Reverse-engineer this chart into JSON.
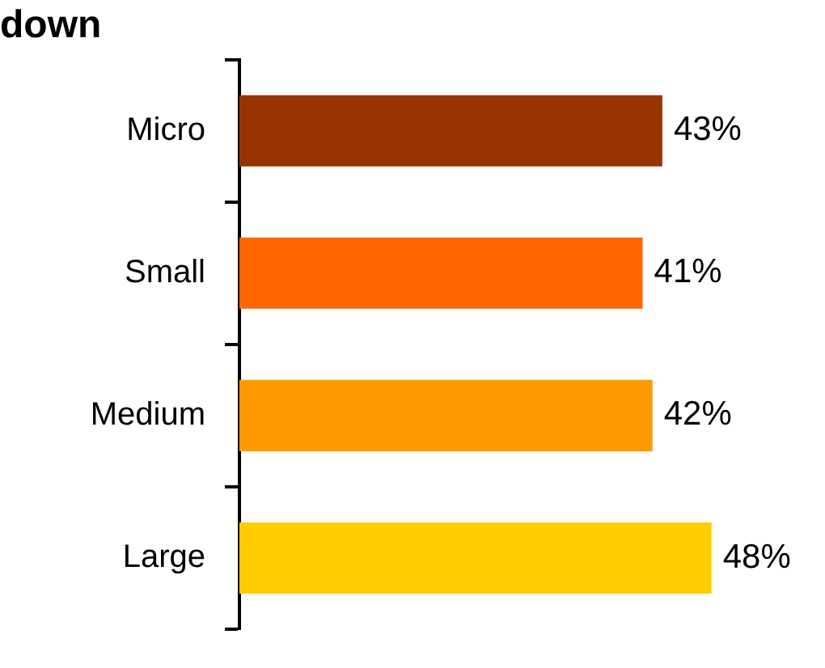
{
  "chart_data": {
    "type": "bar",
    "orientation": "horizontal",
    "title": "down",
    "categories": [
      "Micro",
      "Small",
      "Medium",
      "Large"
    ],
    "values": [
      43,
      41,
      42,
      48
    ],
    "value_labels": [
      "43%",
      "41%",
      "42%",
      "48%"
    ],
    "colors": [
      "#993300",
      "#ff6600",
      "#ff9900",
      "#ffcc00"
    ],
    "legend": false
  }
}
